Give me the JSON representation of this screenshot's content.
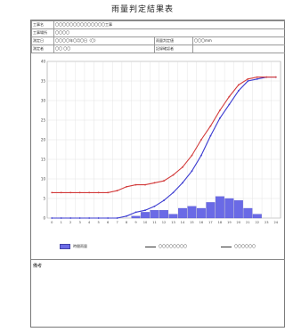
{
  "document": {
    "title": "雨量判定結果表"
  },
  "info": {
    "row1": {
      "label": "工事名",
      "value": "〇〇〇〇〇〇〇〇〇〇〇〇〇〇工事"
    },
    "row2": {
      "label": "工事場所",
      "value": "〇〇〇〇"
    },
    "row3": {
      "label": "測定日",
      "value": "〇〇〇〇年〇月〇日（〇）",
      "label2": "雨量判定値",
      "value2": "〇〇〇mm"
    },
    "row4": {
      "label": "測定者",
      "value": "〇〇 〇〇",
      "label2": "記録確認者",
      "value2": ""
    }
  },
  "chart_data": {
    "type": "bar",
    "categories": [
      "0",
      "1",
      "2",
      "3",
      "4",
      "5",
      "6",
      "7",
      "8",
      "9",
      "10",
      "11",
      "12",
      "13",
      "14",
      "15",
      "16",
      "17",
      "18",
      "19",
      "20",
      "21",
      "22",
      "23",
      "24"
    ],
    "ylim": [
      0,
      40
    ],
    "y_ticks": [
      "0",
      "5",
      "10",
      "15",
      "20",
      "25",
      "30",
      "35",
      "40"
    ],
    "grid": true,
    "series": [
      {
        "type": "bar",
        "color": "#6a6ae6",
        "values": [
          0,
          0,
          0,
          0,
          0,
          0,
          0,
          0,
          0,
          0.5,
          1.5,
          2,
          2,
          1,
          2.5,
          3,
          2.5,
          4,
          5.5,
          5,
          4.5,
          2.5,
          1,
          0,
          0
        ]
      },
      {
        "type": "line",
        "color": "#3a3ad0",
        "values": [
          0,
          0,
          0,
          0,
          0,
          0,
          0,
          0,
          0.5,
          1.5,
          2,
          3,
          4.5,
          6.5,
          9,
          12,
          16,
          21,
          25.5,
          29,
          32.5,
          35,
          35.5,
          36,
          36
        ]
      },
      {
        "type": "line",
        "color": "#d23a3a",
        "values": [
          6.5,
          6.5,
          6.5,
          6.5,
          6.5,
          6.5,
          6.5,
          7,
          8,
          8.5,
          8.5,
          9,
          9.5,
          11,
          13,
          16,
          20,
          23.5,
          27.5,
          31,
          34,
          35.5,
          36,
          36,
          36
        ]
      }
    ]
  },
  "legend": {
    "bar_label": "時間雨量",
    "line1_label": "〇〇〇〇〇〇〇〇",
    "line2_label": "〇〇〇〇〇〇"
  },
  "remarks": {
    "label": "備考"
  }
}
